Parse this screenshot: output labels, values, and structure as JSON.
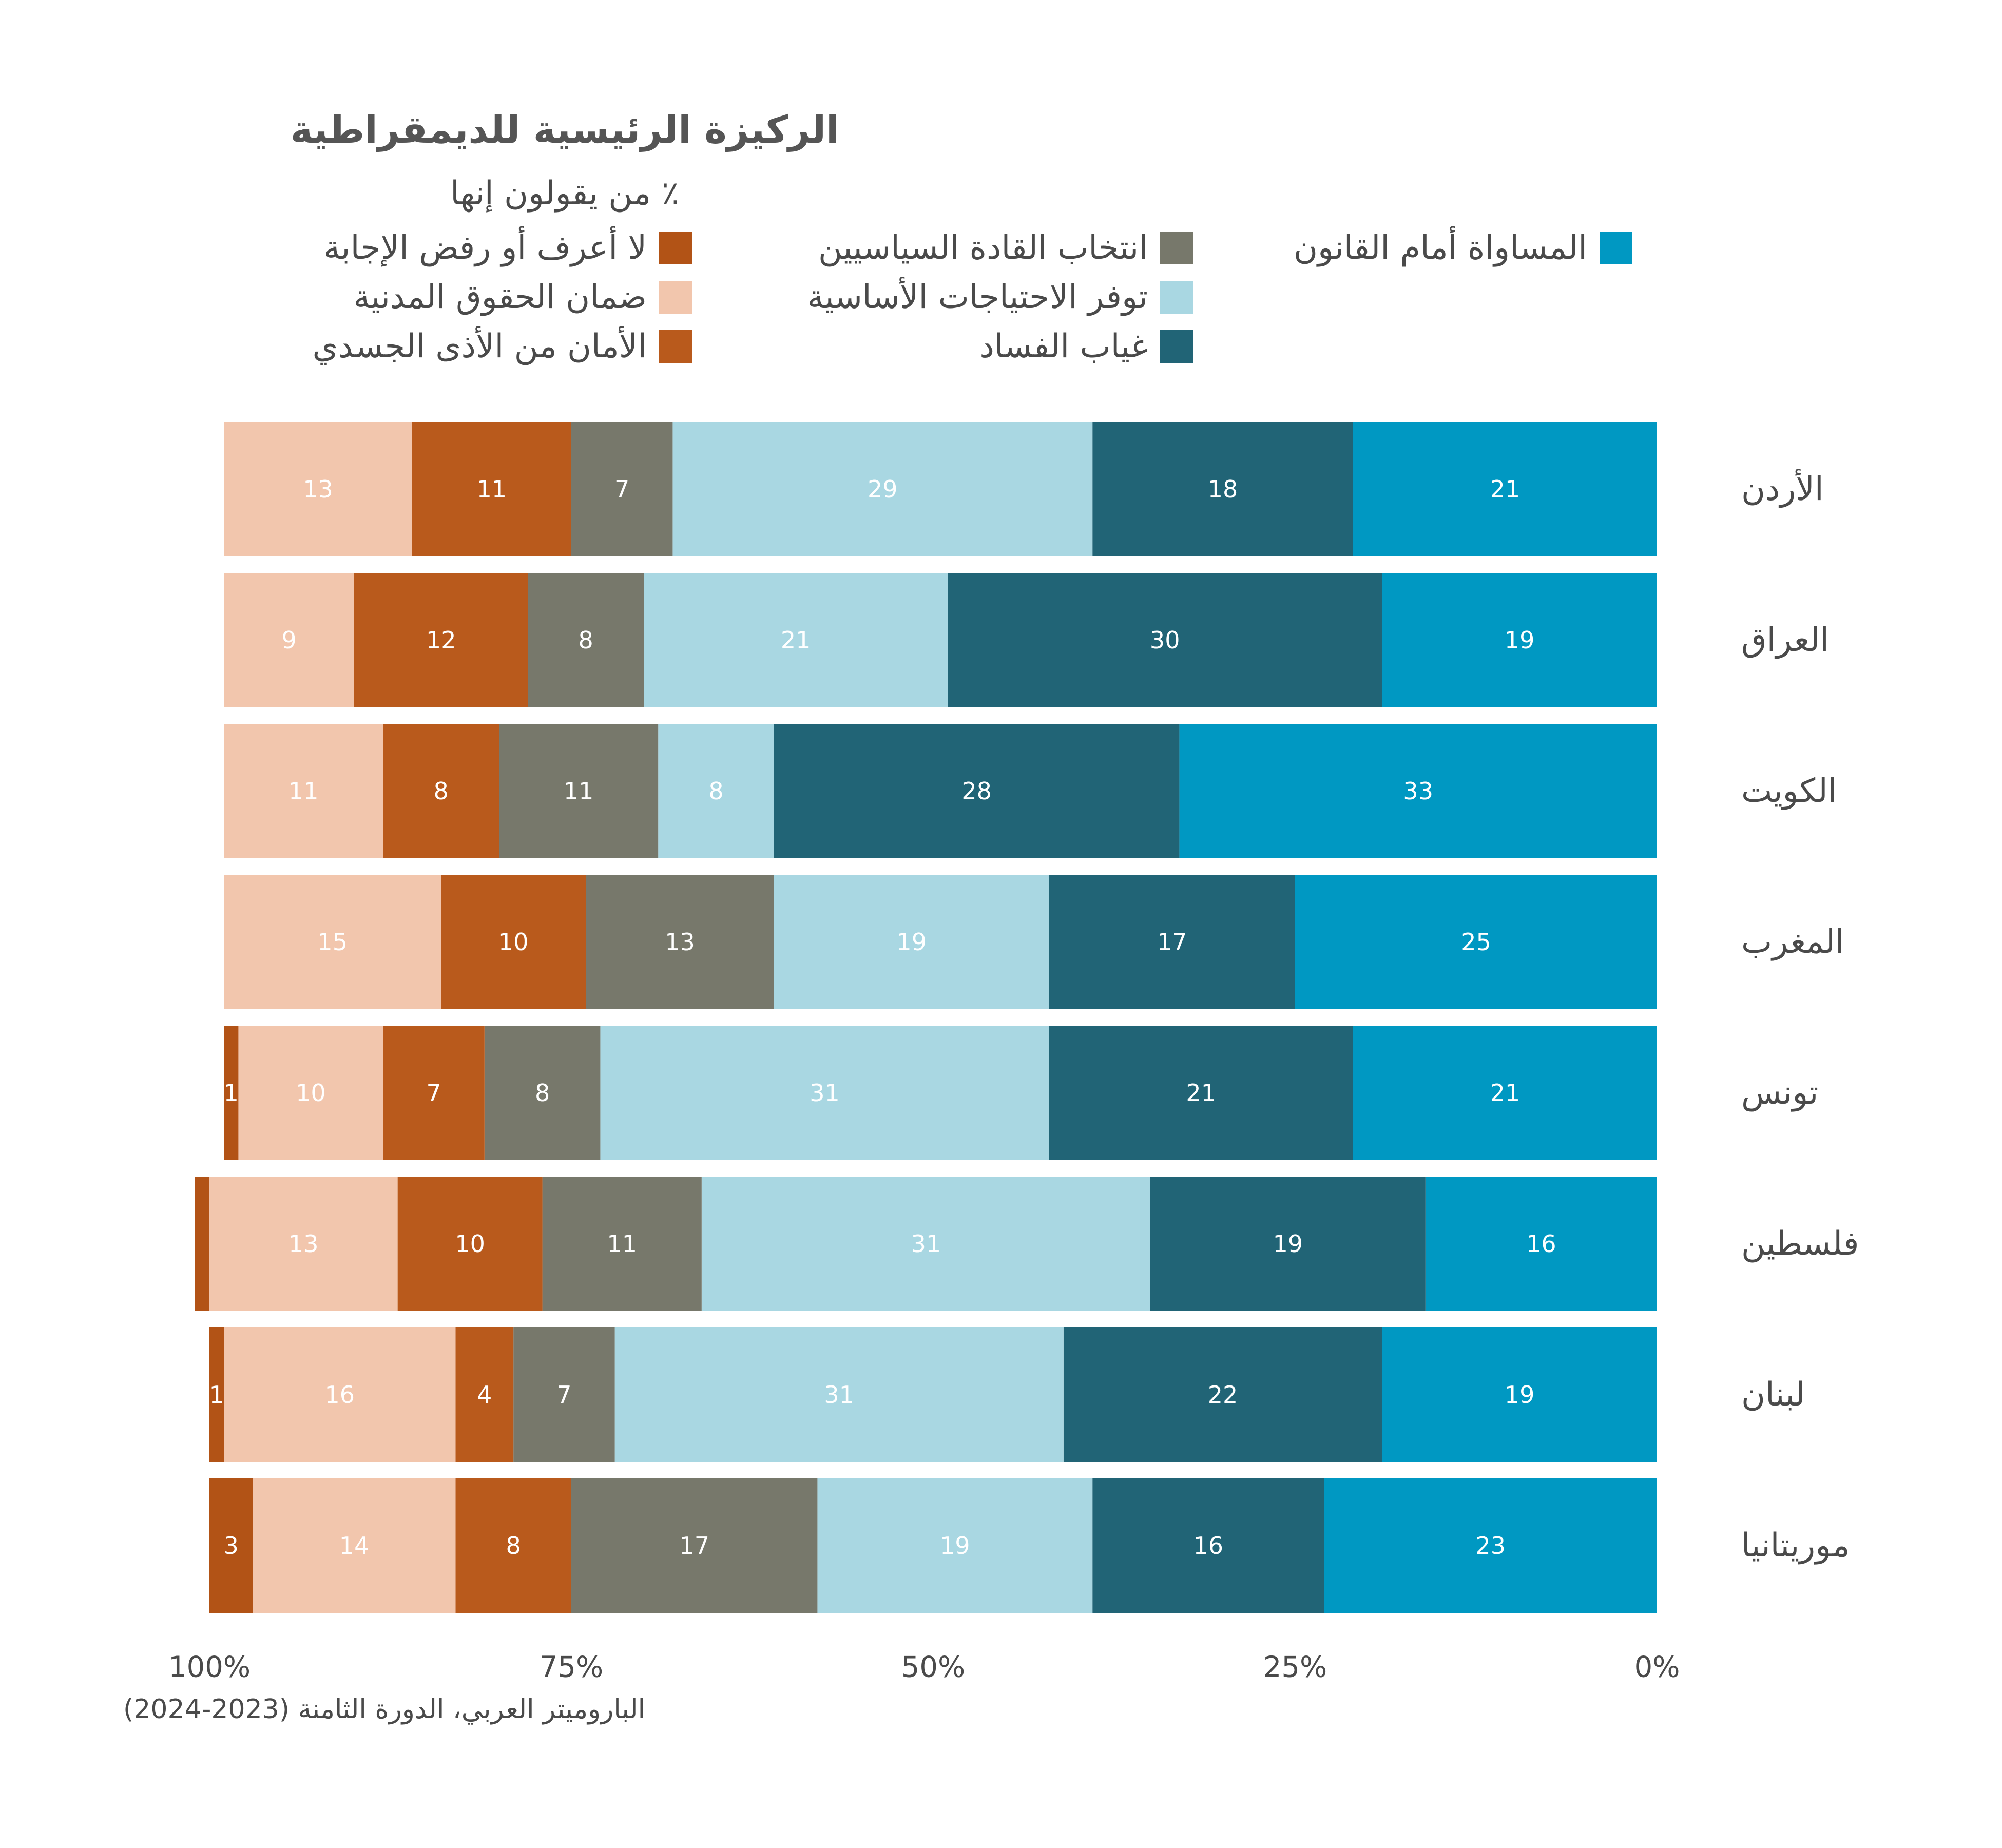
{
  "title": "الركيزة الرئيسية للديمقراطية",
  "subtitle": "٪ من يقولون إنها",
  "source": "الباروميتر العربي، الدورة الثامنة (2023-2024)",
  "chart_data": {
    "type": "bar",
    "orientation": "horizontal-stacked",
    "stack_direction": "right-to-left",
    "categories": [
      "الأردن",
      "العراق",
      "الكويت",
      "المغرب",
      "تونس",
      "فلسطين",
      "لبنان",
      "موريتانيا"
    ],
    "series": [
      {
        "name": "المساواة أمام القانون",
        "color": "#0098c2",
        "label_color": "#ffffff",
        "values": [
          21,
          19,
          33,
          25,
          21,
          16,
          19,
          23
        ]
      },
      {
        "name": "غياب الفساد",
        "color": "#216476",
        "label_color": "#ffffff",
        "values": [
          18,
          30,
          28,
          17,
          21,
          19,
          22,
          16
        ]
      },
      {
        "name": "توفر الاحتياجات الأساسية",
        "color": "#a9d7e2",
        "label_color": "#ffffff",
        "values": [
          29,
          21,
          8,
          19,
          31,
          31,
          31,
          19
        ]
      },
      {
        "name": "انتخاب القادة السياسيين",
        "color": "#77786b",
        "label_color": "#ffffff",
        "values": [
          7,
          8,
          11,
          13,
          8,
          11,
          7,
          17
        ]
      },
      {
        "name": "الأمان من الأذى الجسدي",
        "color": "#b95a1c",
        "label_color": "#ffffff",
        "values": [
          11,
          12,
          8,
          10,
          7,
          10,
          4,
          8
        ]
      },
      {
        "name": "ضمان الحقوق المدنية",
        "color": "#f2c6ad",
        "label_color": "#ffffff",
        "values": [
          13,
          9,
          11,
          15,
          10,
          13,
          16,
          14
        ]
      },
      {
        "name": "لا أعرف أو رفض الإجابة",
        "color": "#b25316",
        "label_color": "#ffffff",
        "values": [
          null,
          null,
          null,
          null,
          1,
          1,
          1,
          3
        ]
      }
    ],
    "data_labels_shown": [
      [
        true,
        true,
        true,
        true,
        true,
        true,
        true
      ],
      [
        true,
        true,
        true,
        true,
        true,
        true,
        true
      ],
      [
        true,
        true,
        true,
        true,
        true,
        true,
        true
      ],
      [
        true,
        true,
        true,
        true,
        true,
        true,
        true
      ],
      [
        true,
        true,
        true,
        true,
        true,
        true,
        true
      ],
      [
        true,
        true,
        true,
        true,
        true,
        true,
        false
      ],
      [
        true,
        true,
        true,
        true,
        true,
        true,
        true
      ],
      [
        true,
        true,
        true,
        true,
        true,
        true,
        true
      ]
    ],
    "xlim": [
      0,
      100
    ],
    "x_ticks": [
      "0%",
      "25%",
      "50%",
      "75%",
      "100%"
    ],
    "x_tick_values": [
      0,
      25,
      50,
      75,
      100
    ],
    "xlabel": "",
    "ylabel": "",
    "grid": false,
    "legend_placement": "top"
  }
}
